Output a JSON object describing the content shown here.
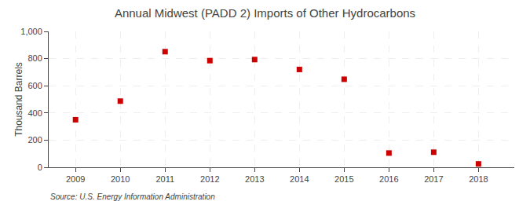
{
  "chart_data": {
    "type": "scatter",
    "title": "Annual Midwest (PADD 2) Imports of Other Hydrocarbons",
    "ylabel": "Thousand Barrels",
    "annotation": "Source: U.S. Energy Information Administration",
    "x": [
      2009,
      2010,
      2011,
      2012,
      2013,
      2014,
      2015,
      2016,
      2017,
      2018
    ],
    "values": [
      350,
      487,
      851,
      785,
      793,
      720,
      648,
      105,
      111,
      25
    ],
    "color": "#cc0000",
    "marker": "square",
    "xlim": [
      2008.4,
      2018.8
    ],
    "xticks": [
      2009,
      2010,
      2011,
      2012,
      2013,
      2014,
      2015,
      2016,
      2017,
      2018
    ],
    "ylim": [
      0,
      1000
    ],
    "yticks": [
      0,
      200,
      400,
      600,
      800,
      {
        "value": 1000,
        "label": "1,000"
      }
    ],
    "grid": true
  }
}
